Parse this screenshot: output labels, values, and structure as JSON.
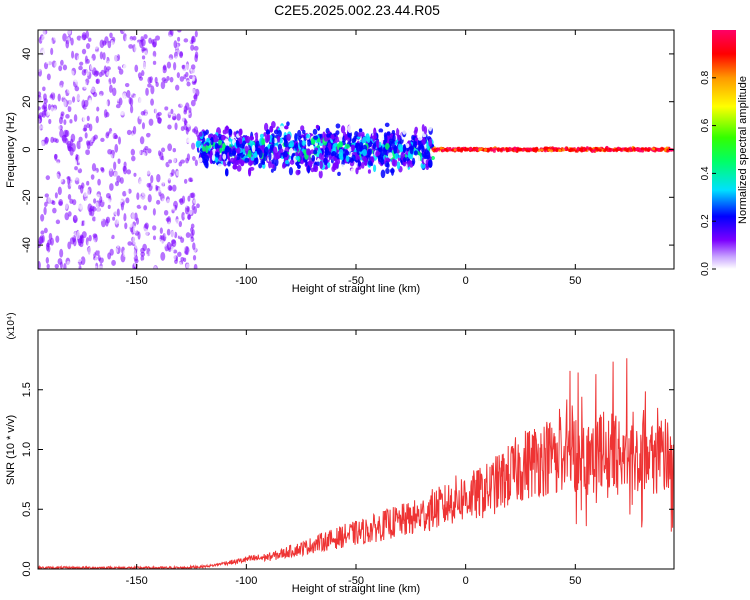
{
  "figure": {
    "title": "C2E5.2025.002.23.44.R05"
  },
  "colorbar": {
    "label": "Normalized spectral amplitude",
    "ticks": [
      "0.0",
      "0.2",
      "0.4",
      "0.6",
      "0.8"
    ],
    "tick_values": [
      0.0,
      0.2,
      0.4,
      0.6,
      0.8
    ],
    "range": [
      0,
      1
    ],
    "colors": [
      "#ffffff",
      "#7c00ff",
      "#0000ff",
      "#00e0ff",
      "#00ff66",
      "#33ff00",
      "#ffff00",
      "#ff9900",
      "#ff0000",
      "#ff0066"
    ]
  },
  "chart_data": [
    {
      "type": "heatmap",
      "title": "C2E5.2025.002.23.44.R05",
      "xlabel": "Height of straight line (km)",
      "ylabel": "Frequency (Hz)",
      "xlim": [
        -195,
        95
      ],
      "ylim": [
        -50,
        50
      ],
      "xticks": [
        -150,
        -100,
        -50,
        0,
        50
      ],
      "yticks": [
        -40,
        -20,
        0,
        20,
        40
      ],
      "xtick_labels": [
        "-150",
        "-100",
        "-50",
        "0",
        "50"
      ],
      "ytick_labels": [
        "-40",
        "-20",
        "0",
        "20",
        "40"
      ],
      "grid": false,
      "colorscale_range": [
        0,
        1
      ],
      "features": [
        {
          "x_range": [
            -195,
            -122
          ],
          "y_range": [
            -50,
            50
          ],
          "amplitude_range": [
            0.0,
            0.1
          ],
          "description": "scattered noise"
        },
        {
          "x_range": [
            -122,
            -15
          ],
          "y_range": [
            -12,
            12
          ],
          "amplitude_range": [
            0.0,
            0.3
          ],
          "description": "broadband speckle near 0 Hz"
        },
        {
          "x_range": [
            -15,
            95
          ],
          "y_range": [
            -1,
            1
          ],
          "amplitude_range": [
            0.8,
            1.0
          ],
          "description": "narrow line at 0 Hz"
        }
      ]
    },
    {
      "type": "line",
      "xlabel": "Height of straight line (km)",
      "ylabel": "SNR (10 * v/v)",
      "y_multiplier": "(x10⁴)",
      "xlim": [
        -195,
        95
      ],
      "ylim": [
        0,
        2.0
      ],
      "xticks": [
        -150,
        -100,
        -50,
        0,
        50
      ],
      "yticks": [
        0.0,
        0.5,
        1.0,
        1.5
      ],
      "xtick_labels": [
        "-150",
        "-100",
        "-50",
        "0",
        "50"
      ],
      "ytick_labels": [
        "0.0",
        "0.5",
        "1.0",
        "1.5"
      ],
      "grid": false,
      "series": [
        {
          "color": "#ee3333",
          "x": [
            -195,
            -180,
            -160,
            -140,
            -130,
            -120,
            -115,
            -110,
            -105,
            -100,
            -95,
            -90,
            -85,
            -80,
            -75,
            -70,
            -65,
            -60,
            -55,
            -50,
            -45,
            -40,
            -35,
            -30,
            -25,
            -20,
            -15,
            -10,
            -5,
            0,
            5,
            10,
            15,
            20,
            25,
            30,
            35,
            40,
            45,
            50,
            55,
            60,
            65,
            70,
            75,
            80,
            85,
            90,
            93
          ],
          "y": [
            0.01,
            0.01,
            0.01,
            0.01,
            0.01,
            0.02,
            0.03,
            0.05,
            0.06,
            0.08,
            0.09,
            0.1,
            0.12,
            0.15,
            0.17,
            0.2,
            0.23,
            0.25,
            0.28,
            0.3,
            0.32,
            0.35,
            0.38,
            0.4,
            0.42,
            0.45,
            0.5,
            0.52,
            0.58,
            0.6,
            0.62,
            0.66,
            0.72,
            0.78,
            0.85,
            0.9,
            0.93,
            0.95,
            0.97,
            0.98,
            0.95,
            0.98,
            0.97,
            0.95,
            0.98,
            1.0,
            0.95,
            0.95,
            0.9
          ]
        }
      ]
    }
  ]
}
